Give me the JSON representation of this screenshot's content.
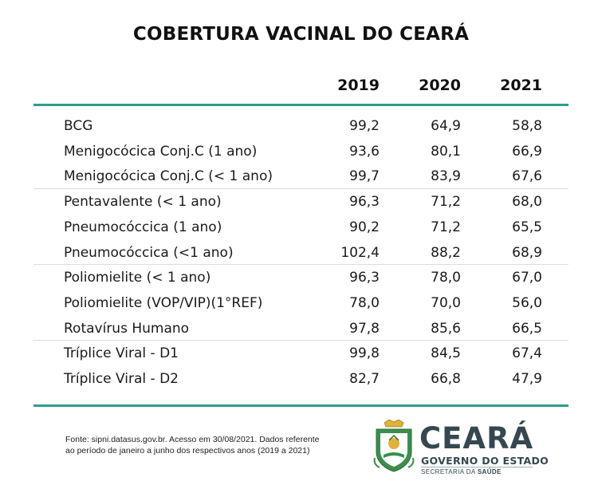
{
  "title": "COBERTURA VACINAL DO CEARÁ",
  "years": [
    "2019",
    "2020",
    "2021"
  ],
  "rows": [
    {
      "label": "BCG",
      "v2019": "99,2",
      "v2020": "64,9",
      "v2021": "58,8"
    },
    {
      "label": "Menigocócica Conj.C (1 ano)",
      "v2019": "93,6",
      "v2020": "80,1",
      "v2021": "66,9"
    },
    {
      "label": "Menigocócica Conj.C (< 1 ano)",
      "v2019": "99,7",
      "v2020": "83,9",
      "v2021": "67,6"
    },
    {
      "label": "Pentavalente (< 1 ano)",
      "v2019": "96,3",
      "v2020": "71,2",
      "v2021": "68,0"
    },
    {
      "label": "Pneumocóccica (1 ano)",
      "v2019": "90,2",
      "v2020": "71,2",
      "v2021": "65,5"
    },
    {
      "label": "Pneumocóccica (<1 ano)",
      "v2019": "102,4",
      "v2020": "88,2",
      "v2021": "68,9"
    },
    {
      "label": "Poliomielite (< 1 ano)",
      "v2019": "96,3",
      "v2020": "78,0",
      "v2021": "67,0"
    },
    {
      "label": "Poliomielite (VOP/VIP)(1°REF)",
      "v2019": "78,0",
      "v2020": "70,0",
      "v2021": "56,0"
    },
    {
      "label": "Rotavírus Humano",
      "v2019": "97,8",
      "v2020": "85,6",
      "v2021": "66,5"
    },
    {
      "label": "Tríplice Viral - D1",
      "v2019": "99,8",
      "v2020": "84,5",
      "v2021": "67,4"
    },
    {
      "label": "Tríplice Viral - D2",
      "v2019": "82,7",
      "v2020": "66,8",
      "v2021": "47,9"
    }
  ],
  "source": {
    "line1": "Fonte: sipni.datasus.gov.br. Acesso em 30/08/2021. Dados referente",
    "line2": "ao período de janeiro a junho dos respectivos anos (2019 a 2021)"
  },
  "brand": {
    "name": "CEARÁ",
    "subtitle": "GOVERNO DO ESTADO",
    "secretaria_prefix": "SECRETARIA DA ",
    "secretaria_bold": "SAÚDE",
    "icon": "ceara-state-crest-icon"
  },
  "colors": {
    "accent": "#2e9c8c",
    "brand_text": "#35484f",
    "crest_green": "#3a8f4d",
    "crest_gold": "#e0b23a"
  }
}
